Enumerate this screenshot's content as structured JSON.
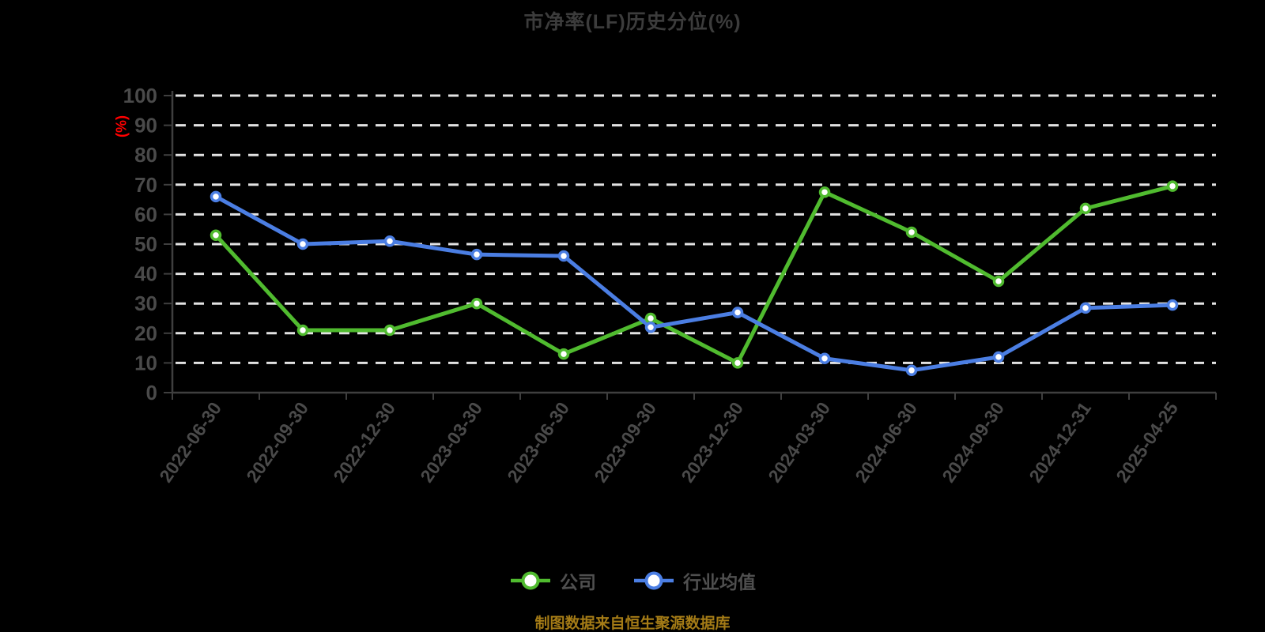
{
  "chart_data": {
    "type": "line",
    "title": "市净率(LF)历史分位(%)",
    "ylabel": "(%)",
    "xlabel": "",
    "ylim": [
      0,
      100
    ],
    "yticks": [
      0,
      10,
      20,
      30,
      40,
      50,
      60,
      70,
      80,
      90,
      100
    ],
    "grid": "horizontal-dashed",
    "legend_position": "bottom-center",
    "categories": [
      "2022-06-30",
      "2022-09-30",
      "2022-12-30",
      "2023-03-30",
      "2023-06-30",
      "2023-09-30",
      "2023-12-30",
      "2024-03-30",
      "2024-06-30",
      "2024-09-30",
      "2024-12-31",
      "2025-04-25"
    ],
    "series": [
      {
        "name": "公司",
        "color": "#50bb2f",
        "marker": "circle-white-fill",
        "values": [
          53,
          21,
          21,
          30,
          13,
          25,
          10,
          67.5,
          54,
          37.5,
          62,
          69.5
        ]
      },
      {
        "name": "行业均值",
        "color": "#4b7ee3",
        "marker": "circle-white-fill",
        "values": [
          66,
          50,
          51,
          46.5,
          46,
          22,
          27,
          11.5,
          7.5,
          12,
          28.5,
          29.5
        ]
      }
    ],
    "colors": {
      "background": "#000000",
      "title_text": "#3c3c3c",
      "axis_line": "#3f3f3f",
      "tick_text": "#4a4a4a",
      "gridline": "#e2e2e2",
      "y_axis_name": "#ff0000",
      "legend_text": "#4f4f4f",
      "caption_text": "#a47b16"
    }
  },
  "caption": {
    "text": "制图数据来自恒生聚源数据库"
  }
}
